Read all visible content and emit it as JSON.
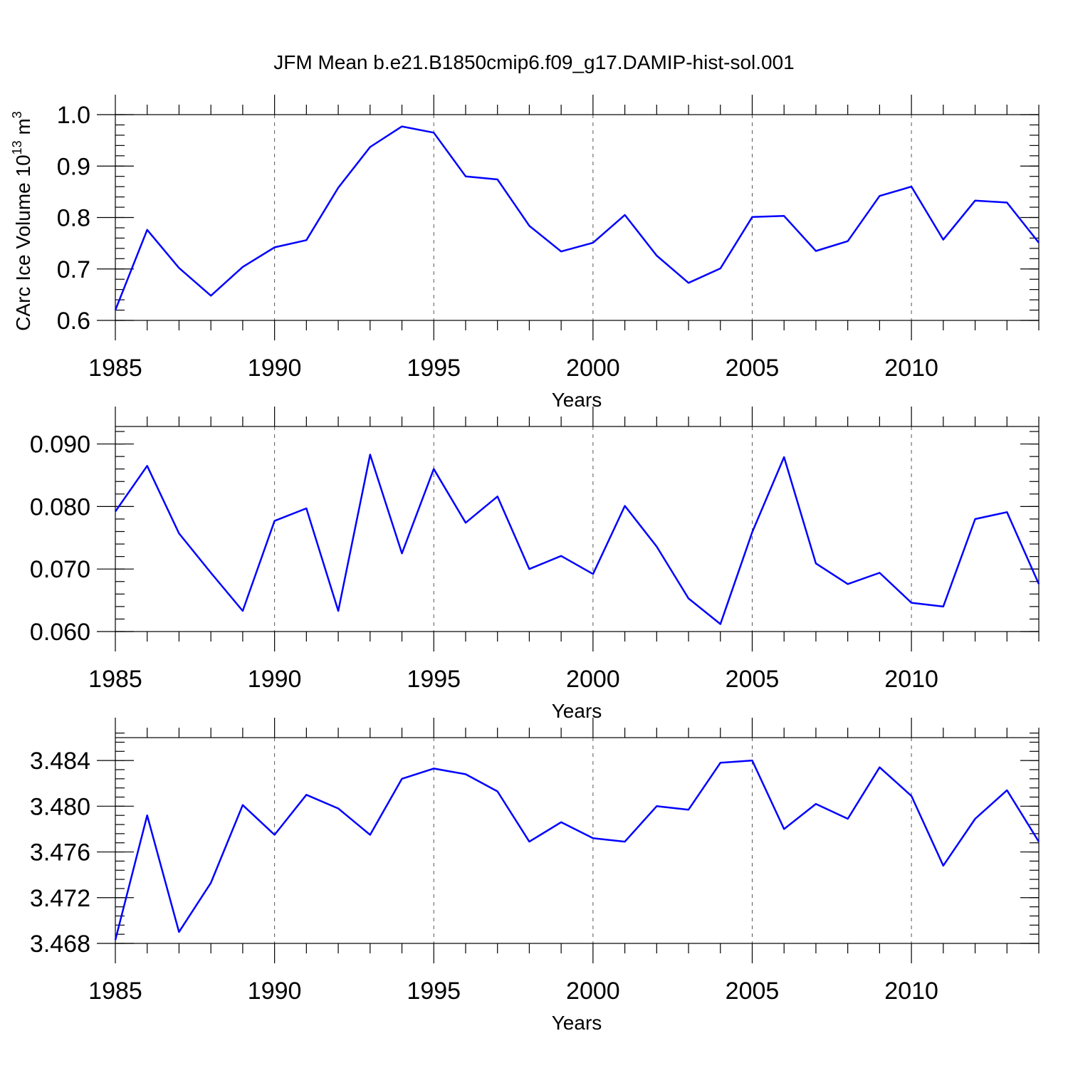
{
  "title": "JFM Mean b.e21.B1850cmip6.f09_g17.DAMIP-hist-sol.001",
  "chart_data": [
    {
      "type": "line",
      "name": "panel-ice-volume",
      "ylabel_main": "CArc Ice Volume 10",
      "ylabel_exp": "13",
      "ylabel_unit": " m",
      "ylabel_unit_exp": "3",
      "xlabel": "Years",
      "xlim": [
        1985,
        2014
      ],
      "ylim": [
        0.6,
        1.0
      ],
      "x_ticks": [
        1985,
        1990,
        1995,
        2000,
        2005,
        2010
      ],
      "x_tick_labels": [
        "1985",
        "1990",
        "1995",
        "2000",
        "2005",
        "2010"
      ],
      "y_ticks": [
        0.6,
        0.7,
        0.8,
        0.9,
        1.0
      ],
      "y_tick_labels": [
        "0.6",
        "0.7",
        "0.8",
        "0.9",
        "1.0"
      ],
      "y_minor_step": 0.02,
      "color": "#0000ff",
      "x": [
        1985,
        1986,
        1987,
        1988,
        1989,
        1990,
        1991,
        1992,
        1993,
        1994,
        1995,
        1996,
        1997,
        1998,
        1999,
        2000,
        2001,
        2002,
        2003,
        2004,
        2005,
        2006,
        2007,
        2008,
        2009,
        2010,
        2011,
        2012,
        2013,
        2014
      ],
      "values": [
        0.62,
        0.776,
        0.702,
        0.648,
        0.704,
        0.742,
        0.756,
        0.858,
        0.937,
        0.977,
        0.965,
        0.88,
        0.874,
        0.784,
        0.734,
        0.751,
        0.805,
        0.726,
        0.673,
        0.701,
        0.801,
        0.803,
        0.735,
        0.754,
        0.842,
        0.86,
        0.757,
        0.833,
        0.829,
        0.751
      ]
    },
    {
      "type": "line",
      "name": "panel-snow-volume",
      "ylabel_main": "",
      "ylabel_exp": "",
      "ylabel_unit": "",
      "ylabel_unit_exp": "",
      "xlabel": "Years",
      "xlim": [
        1985,
        2014
      ],
      "ylim": [
        0.06,
        0.0928
      ],
      "x_ticks": [
        1985,
        1990,
        1995,
        2000,
        2005,
        2010
      ],
      "x_tick_labels": [
        "1985",
        "1990",
        "1995",
        "2000",
        "2005",
        "2010"
      ],
      "y_ticks": [
        0.06,
        0.07,
        0.08,
        0.09
      ],
      "y_tick_labels": [
        "0.060",
        "0.070",
        "0.080",
        "0.090"
      ],
      "y_minor_step": 0.002,
      "color": "#0000ff",
      "x": [
        1985,
        1986,
        1987,
        1988,
        1989,
        1990,
        1991,
        1992,
        1993,
        1994,
        1995,
        1996,
        1997,
        1998,
        1999,
        2000,
        2001,
        2002,
        2003,
        2004,
        2005,
        2006,
        2007,
        2008,
        2009,
        2010,
        2011,
        2012,
        2013,
        2014
      ],
      "values": [
        0.0792,
        0.0865,
        0.0757,
        0.0694,
        0.0633,
        0.0777,
        0.0797,
        0.0633,
        0.0883,
        0.0725,
        0.086,
        0.0774,
        0.0816,
        0.07,
        0.0721,
        0.0692,
        0.0801,
        0.0736,
        0.0653,
        0.0612,
        0.0759,
        0.0879,
        0.0709,
        0.0676,
        0.0694,
        0.0646,
        0.064,
        0.078,
        0.0791,
        0.0676
      ]
    },
    {
      "type": "line",
      "name": "panel-ice-area",
      "ylabel_main": "",
      "ylabel_exp": "",
      "ylabel_unit": "",
      "ylabel_unit_exp": "",
      "xlabel": "Years",
      "xlim": [
        1985,
        2014
      ],
      "ylim": [
        3.468,
        3.486
      ],
      "x_ticks": [
        1985,
        1990,
        1995,
        2000,
        2005,
        2010
      ],
      "x_tick_labels": [
        "1985",
        "1990",
        "1995",
        "2000",
        "2005",
        "2010"
      ],
      "y_ticks": [
        3.468,
        3.472,
        3.476,
        3.48,
        3.484
      ],
      "y_tick_labels": [
        "3.468",
        "3.472",
        "3.476",
        "3.480",
        "3.484"
      ],
      "y_minor_step": 0.0008,
      "color": "#0000ff",
      "x": [
        1985,
        1986,
        1987,
        1988,
        1989,
        1990,
        1991,
        1992,
        1993,
        1994,
        1995,
        1996,
        1997,
        1998,
        1999,
        2000,
        2001,
        2002,
        2003,
        2004,
        2005,
        2006,
        2007,
        2008,
        2009,
        2010,
        2011,
        2012,
        2013,
        2014
      ],
      "values": [
        3.4683,
        3.4792,
        3.469,
        3.4733,
        3.4801,
        3.4775,
        3.481,
        3.4798,
        3.4775,
        3.4824,
        3.4833,
        3.4828,
        3.4813,
        3.4769,
        3.4786,
        3.4772,
        3.4769,
        3.48,
        3.4797,
        3.4838,
        3.484,
        3.478,
        3.4802,
        3.4789,
        3.4834,
        3.4809,
        3.4748,
        3.4789,
        3.4814,
        3.4769
      ]
    }
  ]
}
